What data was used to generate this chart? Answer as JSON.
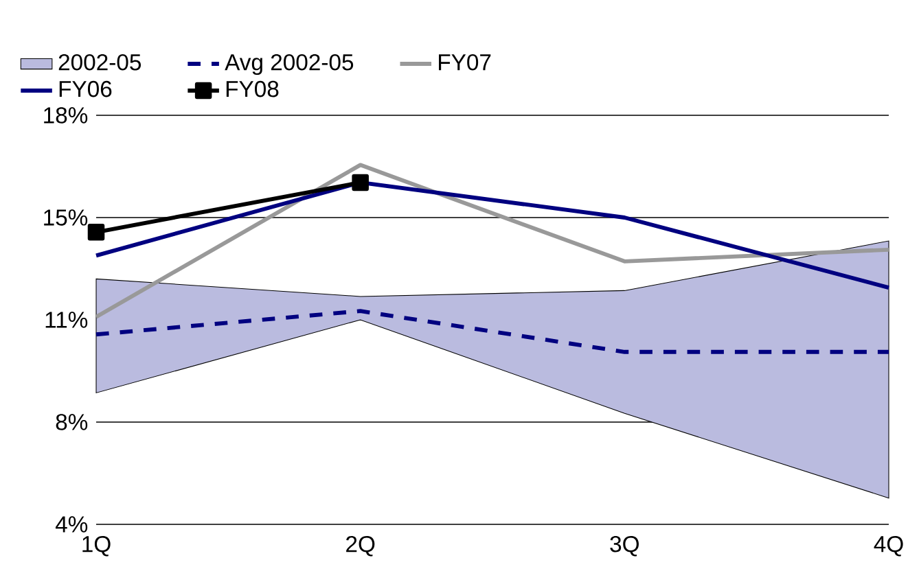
{
  "chart_data": {
    "type": "line",
    "categories": [
      "1Q",
      "2Q",
      "3Q",
      "4Q"
    ],
    "ylim": [
      4,
      18
    ],
    "yticks": [
      {
        "value": 4,
        "label": "4%"
      },
      {
        "value": 7.5,
        "label": "8%"
      },
      {
        "value": 11,
        "label": "11%"
      },
      {
        "value": 14.5,
        "label": "15%"
      },
      {
        "value": 18,
        "label": "18%"
      }
    ],
    "grid": "y",
    "legend": "top",
    "series": [
      {
        "name": "2002-05",
        "type": "area",
        "color": "#babbdf",
        "values": [
          null,
          null,
          null,
          null
        ],
        "lower": [
          8.5,
          11.0,
          7.8,
          4.9
        ],
        "upper": [
          12.4,
          11.8,
          12.0,
          13.7
        ]
      },
      {
        "name": "Avg 2002-05",
        "color": "#000080",
        "line_style": "dashed",
        "values": [
          10.5,
          11.3,
          9.9,
          9.9
        ]
      },
      {
        "name": "FY07",
        "color": "#999999",
        "values": [
          11.1,
          16.3,
          13.0,
          13.4
        ]
      },
      {
        "name": "FY06",
        "color": "#000080",
        "values": [
          13.2,
          15.7,
          14.5,
          12.1
        ]
      },
      {
        "name": "FY08",
        "color": "#000000",
        "marker": "square",
        "values": [
          14.0,
          15.7,
          null,
          null
        ]
      }
    ]
  }
}
